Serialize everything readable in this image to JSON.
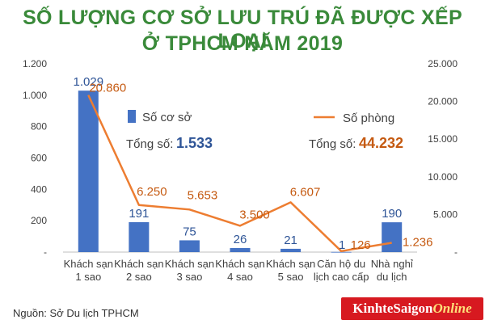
{
  "title_line1": "SỐ LƯỢNG CƠ SỞ LƯU TRÚ ĐÃ ĐƯỢC XẾP LOẠI",
  "title_line2": "Ở TPHCM NĂM 2019",
  "title_color": "#3a8a3a",
  "source": "Nguồn: Sở Du lịch TPHCM",
  "logo": {
    "part1": "KinhteSaigon",
    "part2": "Online"
  },
  "colors": {
    "bar": "#4472c4",
    "line": "#ed7d31",
    "bar_label": "#2f5597",
    "line_label": "#c55a11",
    "text": "#404040"
  },
  "chart_data": {
    "type": "bar+line",
    "categories": [
      "Khách sạn\n1 sao",
      "Khách sạn\n2 sao",
      "Khách sạn\n3 sao",
      "Khách sạn\n4 sao",
      "Khách sạn\n5 sao",
      "Căn hộ du\nlịch cao cấp",
      "Nhà nghỉ\ndu lịch"
    ],
    "series": [
      {
        "name": "Số cơ sở",
        "type": "bar",
        "axis": "left",
        "values": [
          1029,
          191,
          75,
          26,
          21,
          1,
          190
        ],
        "labels": [
          "1.029",
          "191",
          "75",
          "26",
          "21",
          "1",
          "190"
        ]
      },
      {
        "name": "Số phòng",
        "type": "line",
        "axis": "right",
        "values": [
          20860,
          6250,
          5653,
          3500,
          6607,
          126,
          1236
        ],
        "labels": [
          "20.860",
          "6.250",
          "5.653",
          "3.500",
          "6.607",
          "126",
          "1.236"
        ]
      }
    ],
    "y_left": {
      "ylim": [
        0,
        1200
      ],
      "ticks": [
        0,
        200,
        400,
        600,
        800,
        1000,
        1200
      ],
      "tick_labels": [
        "-",
        "200",
        "400",
        "600",
        "800",
        "1.000",
        "1.200"
      ]
    },
    "y_right": {
      "ylim": [
        0,
        25000
      ],
      "ticks": [
        0,
        5000,
        10000,
        15000,
        20000,
        25000
      ],
      "tick_labels": [
        "-",
        "5.000",
        "10.000",
        "15.000",
        "20.000",
        "25.000"
      ]
    },
    "totals": {
      "bar_label": "Tổng số:",
      "bar_value": "1.533",
      "line_label": "Tổng số:",
      "line_value": "44.232"
    },
    "legend": {
      "bar": "Số cơ sở",
      "line": "Số phòng"
    }
  }
}
